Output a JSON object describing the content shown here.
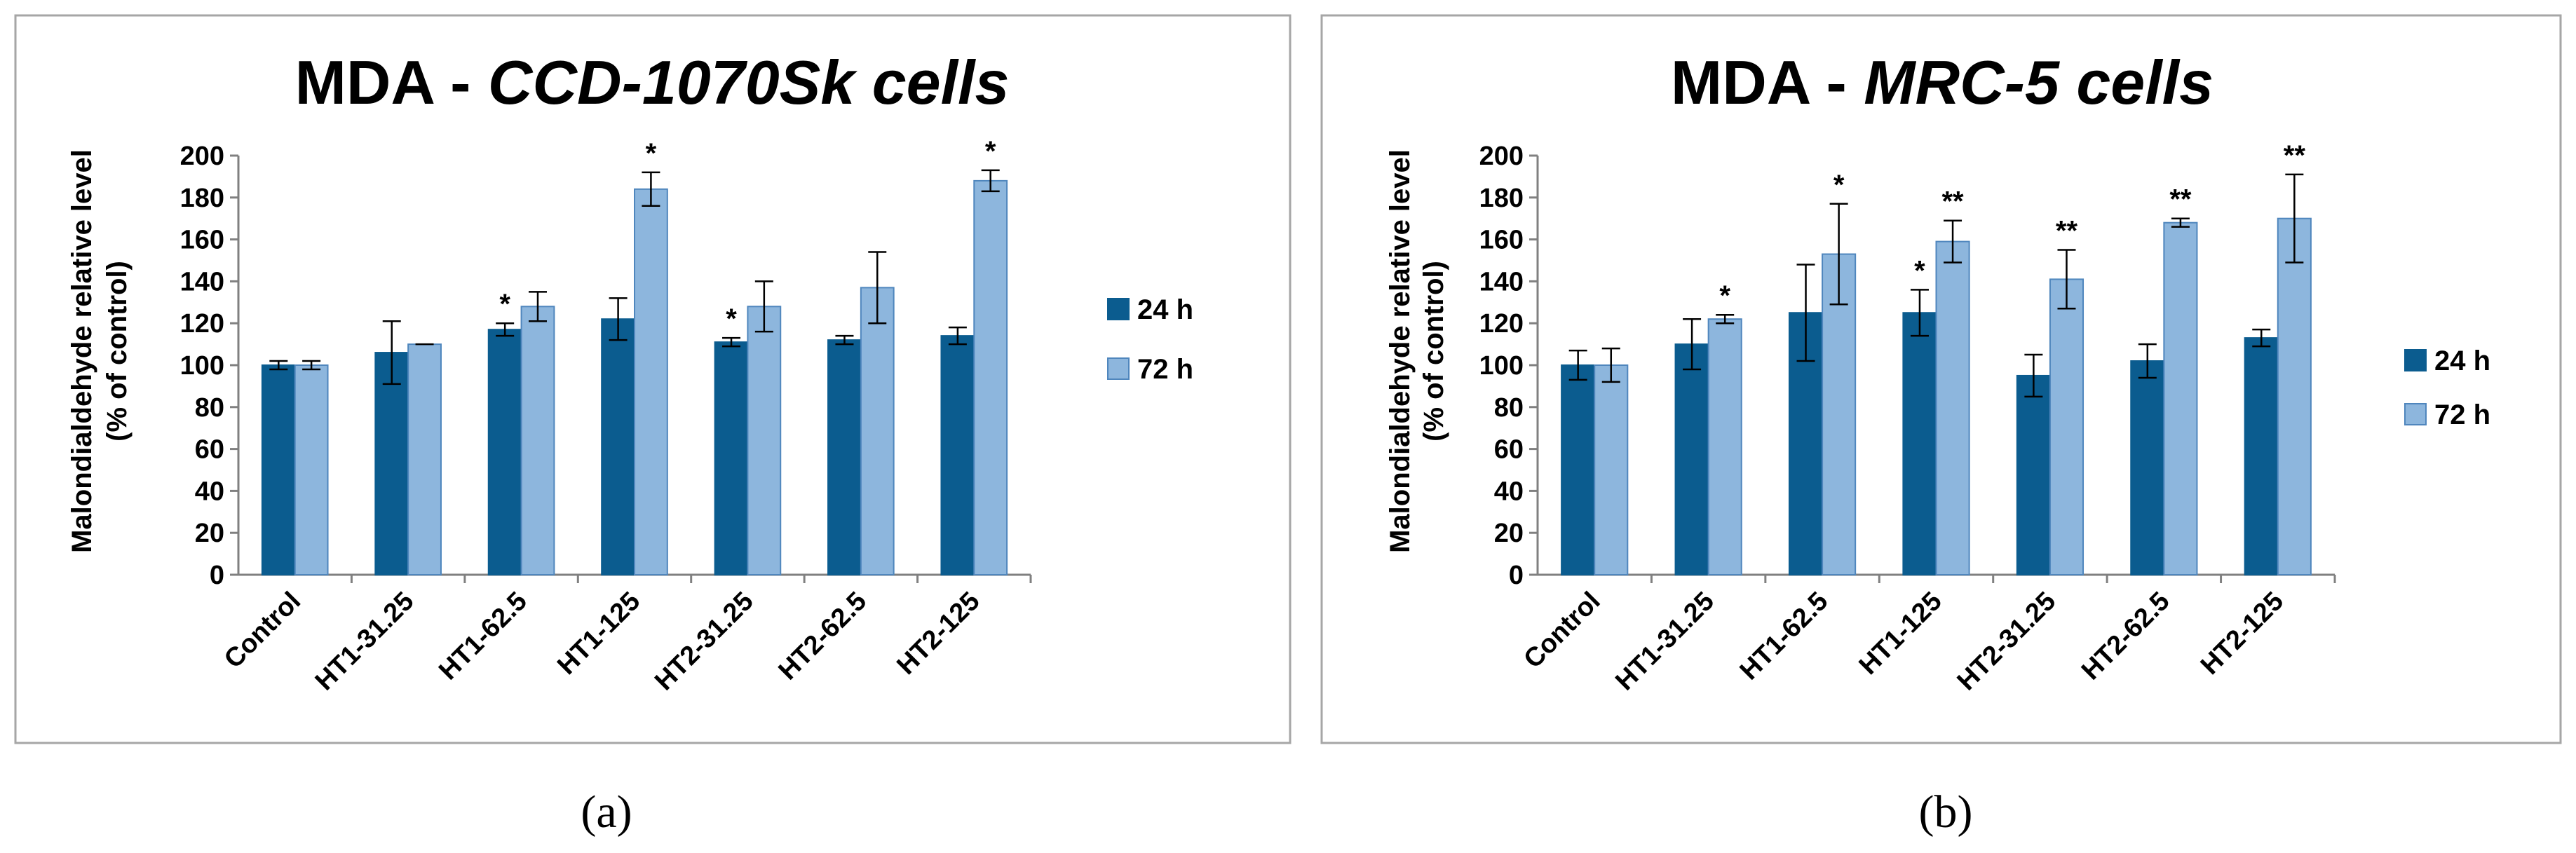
{
  "colors": {
    "series_24h": "#0b5c8f",
    "series_72h": "#8db6dd",
    "series_72h_edge": "#4f86bd",
    "axis": "#808080",
    "frame": "#a6a6a6"
  },
  "chart_data": [
    {
      "type": "bar",
      "panel_label": "(a)",
      "title_prefix": "MDA - ",
      "title_italic": "CCD-1070Sk cells",
      "ylabel_line1": "Malondialdehyde  relative level",
      "ylabel_line2": "(% of control)",
      "ylim": [
        0,
        200
      ],
      "yticks": [
        "0",
        "20",
        "40",
        "60",
        "80",
        "100",
        "120",
        "140",
        "160",
        "180",
        "200"
      ],
      "categories": [
        "Control",
        "HT1-31.25",
        "HT1-62.5",
        "HT1-125",
        "HT2-31.25",
        "HT2-62.5",
        "HT2-125"
      ],
      "legend": [
        "24 h",
        "72 h"
      ],
      "series": [
        {
          "name": "24 h",
          "values": [
            100,
            106,
            117,
            122,
            111,
            112,
            114
          ],
          "errors": [
            2,
            15,
            3,
            10,
            2,
            2,
            4
          ],
          "annotations": [
            "",
            "",
            "*",
            "",
            "*",
            "",
            ""
          ]
        },
        {
          "name": "72 h",
          "values": [
            100,
            110,
            128,
            184,
            128,
            137,
            188
          ],
          "errors": [
            2,
            0,
            7,
            8,
            12,
            17,
            5
          ],
          "annotations": [
            "",
            "",
            "",
            "*",
            "",
            "",
            "*"
          ]
        }
      ]
    },
    {
      "type": "bar",
      "panel_label": "(b)",
      "title_prefix": "MDA - ",
      "title_italic": "MRC-5 cells",
      "ylabel_line1": "Malondialdehyde  relative level",
      "ylabel_line2": "(% of control)",
      "ylim": [
        0,
        200
      ],
      "yticks": [
        "0",
        "20",
        "40",
        "60",
        "80",
        "100",
        "120",
        "140",
        "160",
        "180",
        "200"
      ],
      "categories": [
        "Control",
        "HT1-31.25",
        "HT1-62.5",
        "HT1-125",
        "HT2-31.25",
        "HT2-62.5",
        "HT2-125"
      ],
      "legend": [
        "24 h",
        "72 h"
      ],
      "series": [
        {
          "name": "24 h",
          "values": [
            100,
            110,
            125,
            125,
            95,
            102,
            113
          ],
          "errors": [
            7,
            12,
            23,
            11,
            10,
            8,
            4
          ],
          "annotations": [
            "",
            "",
            "",
            "*",
            "",
            "",
            ""
          ]
        },
        {
          "name": "72 h",
          "values": [
            100,
            122,
            153,
            159,
            141,
            168,
            170
          ],
          "errors": [
            8,
            2,
            24,
            10,
            14,
            2,
            21
          ],
          "annotations": [
            "",
            "*",
            "*",
            "**",
            "**",
            "**",
            "**"
          ]
        }
      ]
    }
  ]
}
